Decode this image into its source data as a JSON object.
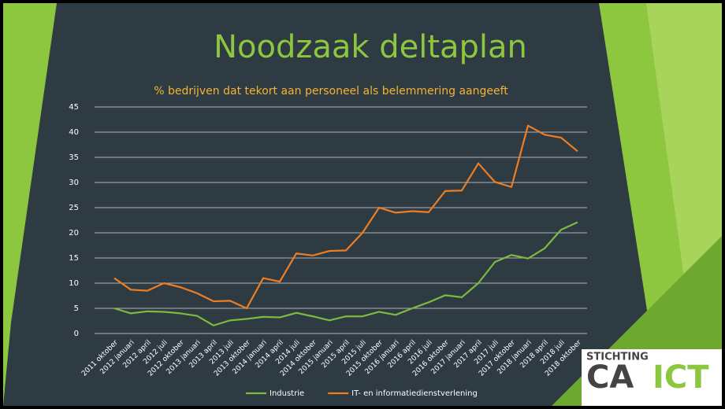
{
  "slide": {
    "title": "Noodzaak deltaplan"
  },
  "logo": {
    "top": "STICHTING",
    "left": "CA",
    "right": "ICT"
  },
  "chart_data": {
    "type": "line",
    "title": "% bedrijven dat tekort aan personeel als belemmering aangeeft",
    "categories": [
      "2011 oktober",
      "2012 januari",
      "2012 april",
      "2012 juli",
      "2012 oktober",
      "2013 januari",
      "2013 april",
      "2013 juli",
      "2013 oktober",
      "2014 januari",
      "2014 april",
      "2014 juli",
      "2014 oktober",
      "2015 januari",
      "2015 april",
      "2015 juli",
      "2015 oktober",
      "2016 januari",
      "2016 april",
      "2016 juli",
      "2016 oktober",
      "2017 januari",
      "2017 april",
      "2017 juli",
      "2017 oktober",
      "2018 januari",
      "2018 april",
      "2018 juli",
      "2018 oktober"
    ],
    "series": [
      {
        "name": "Industrie",
        "color": "#7dbb3f",
        "values": [
          5,
          4,
          4.4,
          4.3,
          4,
          3.5,
          1.6,
          2.6,
          2.9,
          3.3,
          3.2,
          4.1,
          3.4,
          2.6,
          3.4,
          3.4,
          4.3,
          3.7,
          5,
          6.2,
          7.6,
          7.2,
          10,
          14.2,
          15.6,
          14.9,
          16.9,
          20.6,
          22.1
        ]
      },
      {
        "name": "IT- en informatiedienstverlening",
        "color": "#ef7d22",
        "values": [
          11,
          8.7,
          8.5,
          10,
          9.2,
          8,
          6.4,
          6.5,
          5,
          11,
          10.3,
          15.9,
          15.5,
          16.4,
          16.5,
          20,
          25,
          24,
          24.3,
          24.1,
          28.3,
          28.4,
          33.8,
          30.1,
          29.1,
          41.3,
          39.5,
          38.9,
          36.2
        ]
      }
    ],
    "ylim": [
      0,
      45
    ],
    "yticks": [
      0,
      5,
      10,
      15,
      20,
      25,
      30,
      35,
      40,
      45
    ],
    "grid": true,
    "legend": "bottom"
  }
}
